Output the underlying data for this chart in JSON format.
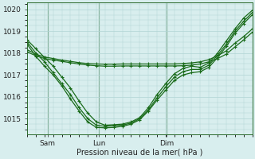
{
  "xlabel": "Pression niveau de la mer( hPa )",
  "bg_color": "#d8eeee",
  "grid_color": "#b0d4d4",
  "line_color": "#1a6b1a",
  "ylim": [
    1014.3,
    1020.3
  ],
  "yticks": [
    1015,
    1016,
    1017,
    1018,
    1019,
    1020
  ],
  "day_labels": [
    "Sam",
    "Lun",
    "Dim"
  ],
  "day_positions": [
    0.09,
    0.32,
    0.62
  ],
  "series": [
    [
      1018.6,
      1018.2,
      1017.8,
      1017.4,
      1016.9,
      1016.4,
      1015.8,
      1015.25,
      1014.85,
      1014.7,
      1014.72,
      1014.75,
      1014.85,
      1015.05,
      1015.5,
      1016.1,
      1016.6,
      1017.05,
      1017.3,
      1017.4,
      1017.35,
      1017.55,
      1018.0,
      1018.55,
      1019.1,
      1019.6,
      1019.95
    ],
    [
      1018.5,
      1018.0,
      1017.6,
      1017.1,
      1016.6,
      1016.1,
      1015.5,
      1015.0,
      1014.7,
      1014.65,
      1014.68,
      1014.7,
      1014.8,
      1015.0,
      1015.4,
      1015.95,
      1016.45,
      1016.9,
      1017.15,
      1017.25,
      1017.25,
      1017.45,
      1017.9,
      1018.4,
      1019.0,
      1019.45,
      1019.85
    ],
    [
      1018.4,
      1017.85,
      1017.4,
      1017.0,
      1016.5,
      1015.9,
      1015.35,
      1014.85,
      1014.6,
      1014.58,
      1014.6,
      1014.65,
      1014.75,
      1014.95,
      1015.35,
      1015.85,
      1016.3,
      1016.75,
      1017.0,
      1017.1,
      1017.15,
      1017.35,
      1017.8,
      1018.3,
      1018.9,
      1019.35,
      1019.75
    ],
    [
      1018.15,
      1017.95,
      1017.82,
      1017.75,
      1017.68,
      1017.62,
      1017.56,
      1017.52,
      1017.5,
      1017.49,
      1017.49,
      1017.5,
      1017.5,
      1017.5,
      1017.5,
      1017.5,
      1017.5,
      1017.5,
      1017.52,
      1017.55,
      1017.6,
      1017.7,
      1017.88,
      1018.1,
      1018.45,
      1018.75,
      1019.1
    ],
    [
      1018.05,
      1017.88,
      1017.75,
      1017.68,
      1017.62,
      1017.56,
      1017.5,
      1017.45,
      1017.42,
      1017.4,
      1017.4,
      1017.41,
      1017.41,
      1017.41,
      1017.41,
      1017.41,
      1017.41,
      1017.41,
      1017.42,
      1017.45,
      1017.5,
      1017.6,
      1017.75,
      1017.95,
      1018.28,
      1018.6,
      1018.95
    ]
  ]
}
